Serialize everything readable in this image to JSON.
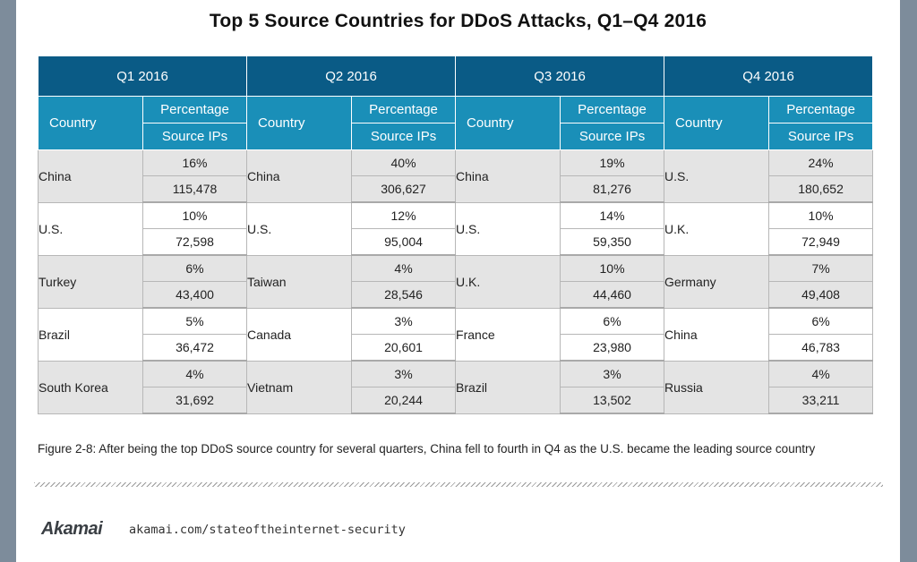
{
  "title": "Top 5 Source Countries for DDoS Attacks, Q1–Q4 2016",
  "table": {
    "quarters": [
      "Q1 2016",
      "Q2 2016",
      "Q3 2016",
      "Q4 2016"
    ],
    "country_header": "Country",
    "percentage_header": "Percentage",
    "source_ips_header": "Source IPs",
    "rows": [
      [
        {
          "country": "China",
          "pct": "16%",
          "ips": "115,478"
        },
        {
          "country": "China",
          "pct": "40%",
          "ips": "306,627"
        },
        {
          "country": "China",
          "pct": "19%",
          "ips": "81,276"
        },
        {
          "country": "U.S.",
          "pct": "24%",
          "ips": "180,652"
        }
      ],
      [
        {
          "country": "U.S.",
          "pct": "10%",
          "ips": "72,598"
        },
        {
          "country": "U.S.",
          "pct": "12%",
          "ips": "95,004"
        },
        {
          "country": "U.S.",
          "pct": "14%",
          "ips": "59,350"
        },
        {
          "country": "U.K.",
          "pct": "10%",
          "ips": "72,949"
        }
      ],
      [
        {
          "country": "Turkey",
          "pct": "6%",
          "ips": "43,400"
        },
        {
          "country": "Taiwan",
          "pct": "4%",
          "ips": "28,546"
        },
        {
          "country": "U.K.",
          "pct": "10%",
          "ips": "44,460"
        },
        {
          "country": "Germany",
          "pct": "7%",
          "ips": "49,408"
        }
      ],
      [
        {
          "country": "Brazil",
          "pct": "5%",
          "ips": "36,472"
        },
        {
          "country": "Canada",
          "pct": "3%",
          "ips": "20,601"
        },
        {
          "country": "France",
          "pct": "6%",
          "ips": "23,980"
        },
        {
          "country": "China",
          "pct": "6%",
          "ips": "46,783"
        }
      ],
      [
        {
          "country": "South Korea",
          "pct": "4%",
          "ips": "31,692"
        },
        {
          "country": "Vietnam",
          "pct": "3%",
          "ips": "20,244"
        },
        {
          "country": "Brazil",
          "pct": "3%",
          "ips": "13,502"
        },
        {
          "country": "Russia",
          "pct": "4%",
          "ips": "33,211"
        }
      ]
    ]
  },
  "caption": "Figure 2-8: After being the top DDoS source country for several quarters, China fell to fourth in Q4 as the U.S. became the leading source country",
  "footer": {
    "logo_text": "Akamai",
    "url": "akamai.com/stateoftheinternet-security"
  },
  "colors": {
    "quarter_header": "#0a5b86",
    "column_header": "#1a8fb8",
    "shaded_row": "#e4e4e4"
  }
}
